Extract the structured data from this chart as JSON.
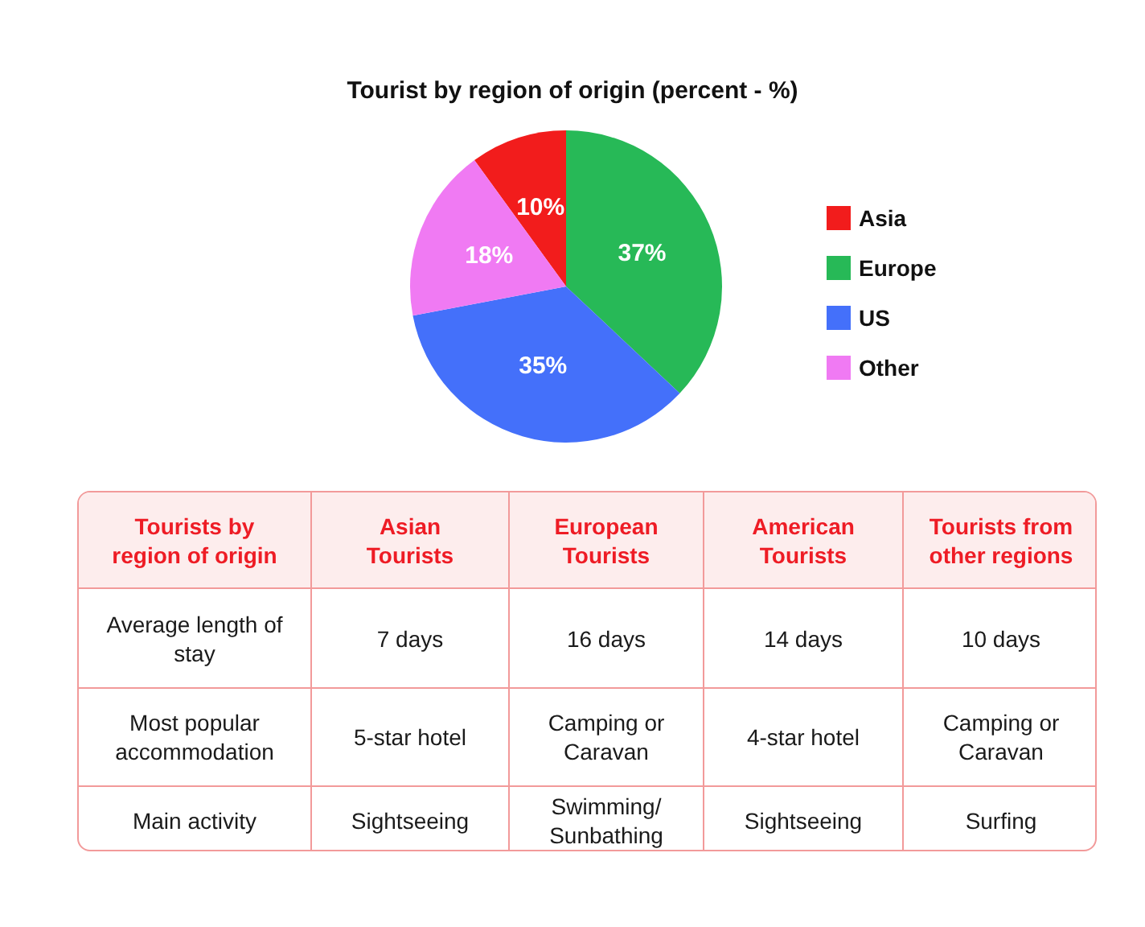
{
  "chart_data": [
    {
      "type": "pie",
      "title": "Tourist by region of origin (percent - %)",
      "categories": [
        "Asia",
        "Europe",
        "US",
        "Other"
      ],
      "values": [
        10,
        37,
        35,
        18
      ],
      "colors": [
        "#f21c1c",
        "#27b957",
        "#4470fa",
        "#f07af3"
      ],
      "value_labels": [
        "10%",
        "37%",
        "35%",
        "18%"
      ],
      "legend": "right"
    },
    {
      "type": "other",
      "xlabel": "Tourists by region of origin",
      "categories": [
        "Asian Tourists",
        "European Tourists",
        "American Tourists",
        "Tourists from other regions"
      ],
      "y_categories": [
        "Average length of stay",
        "Most popular accommodation",
        "Main activity"
      ],
      "cell_labels": [
        [
          "7 days",
          "16 days",
          "14 days",
          "10 days"
        ],
        [
          "5-star hotel",
          "Camping or Caravan",
          "4-star hotel",
          "Camping or Caravan"
        ],
        [
          "Sightseeing",
          "Swimming/ Sunbathing",
          "Sightseeing",
          "Surfing"
        ]
      ]
    }
  ]
}
